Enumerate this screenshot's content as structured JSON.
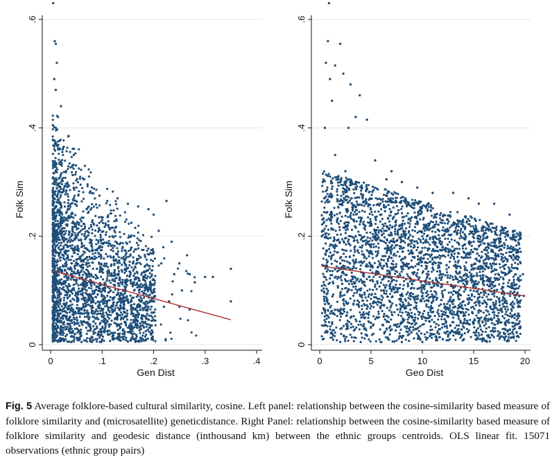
{
  "chart_data": [
    {
      "type": "scatter",
      "xlabel": "Gen Dist",
      "ylabel": "Folk Sim",
      "xlim": [
        0,
        0.4
      ],
      "ylim": [
        0,
        0.6
      ],
      "x_ticks": [
        0,
        0.1,
        0.2,
        0.3,
        0.4
      ],
      "x_tick_labels": [
        "0",
        ".1",
        ".2",
        ".3",
        ".4"
      ],
      "y_ticks": [
        0,
        0.2,
        0.4,
        0.6
      ],
      "y_tick_labels": [
        "0",
        ".2",
        ".4",
        ".6"
      ],
      "grid": "horizontal",
      "point_color": "#1f4e79",
      "fit_color": "#b03030",
      "fit_line": {
        "x": [
          0.005,
          0.35
        ],
        "y": [
          0.136,
          0.046
        ]
      },
      "points": [
        [
          0.005,
          0.63
        ],
        [
          0.008,
          0.56
        ],
        [
          0.01,
          0.555
        ],
        [
          0.012,
          0.52
        ],
        [
          0.007,
          0.49
        ],
        [
          0.01,
          0.47
        ],
        [
          0.02,
          0.44
        ],
        [
          0.035,
          0.385
        ],
        [
          0.045,
          0.35
        ],
        [
          0.055,
          0.325
        ],
        [
          0.065,
          0.305
        ],
        [
          0.08,
          0.29
        ],
        [
          0.095,
          0.275
        ],
        [
          0.11,
          0.265
        ],
        [
          0.13,
          0.27
        ],
        [
          0.15,
          0.26
        ],
        [
          0.17,
          0.255
        ],
        [
          0.19,
          0.25
        ],
        [
          0.2,
          0.24
        ],
        [
          0.225,
          0.265
        ],
        [
          0.21,
          0.21
        ],
        [
          0.235,
          0.19
        ],
        [
          0.2,
          0.17
        ],
        [
          0.215,
          0.15
        ],
        [
          0.25,
          0.15
        ],
        [
          0.265,
          0.165
        ],
        [
          0.27,
          0.13
        ],
        [
          0.28,
          0.115
        ],
        [
          0.3,
          0.125
        ],
        [
          0.315,
          0.125
        ],
        [
          0.35,
          0.14
        ],
        [
          0.35,
          0.08
        ],
        [
          0.27,
          0.065
        ],
        [
          0.255,
          0.1
        ],
        [
          0.24,
          0.13
        ],
        [
          0.22,
          0.07
        ],
        [
          0.2,
          0.045
        ],
        [
          0.185,
          0.025
        ],
        [
          0.16,
          0.03
        ],
        [
          0.14,
          0.02
        ],
        [
          0.12,
          0.015
        ],
        [
          0.1,
          0.01
        ],
        [
          0.08,
          0.005
        ],
        [
          0.06,
          0.005
        ],
        [
          0.04,
          0.005
        ],
        [
          0.02,
          0.01
        ],
        [
          0.005,
          0.02
        ],
        [
          0.005,
          0.1
        ],
        [
          0.005,
          0.2
        ],
        [
          0.01,
          0.3
        ],
        [
          0.015,
          0.36
        ],
        [
          0.03,
          0.32
        ],
        [
          0.05,
          0.29
        ],
        [
          0.07,
          0.25
        ],
        [
          0.09,
          0.22
        ],
        [
          0.12,
          0.2
        ],
        [
          0.14,
          0.18
        ],
        [
          0.16,
          0.15
        ],
        [
          0.18,
          0.12
        ],
        [
          0.2,
          0.1
        ],
        [
          0.23,
          0.08
        ],
        [
          0.25,
          0.07
        ],
        [
          0.03,
          0.15
        ],
        [
          0.05,
          0.12
        ],
        [
          0.07,
          0.1
        ],
        [
          0.09,
          0.14
        ],
        [
          0.11,
          0.09
        ],
        [
          0.13,
          0.13
        ],
        [
          0.15,
          0.08
        ],
        [
          0.17,
          0.11
        ],
        [
          0.19,
          0.07
        ],
        [
          0.03,
          0.05
        ],
        [
          0.06,
          0.04
        ],
        [
          0.09,
          0.05
        ],
        [
          0.12,
          0.06
        ],
        [
          0.02,
          0.23
        ],
        [
          0.04,
          0.2
        ],
        [
          0.06,
          0.18
        ],
        [
          0.08,
          0.16
        ],
        [
          0.1,
          0.18
        ],
        [
          0.01,
          0.4
        ]
      ],
      "fit_note": "Dense cloud of points concentrated between x 0.005-0.15, thinning toward 0.35"
    },
    {
      "type": "scatter",
      "xlabel": "Geo Dist",
      "ylabel": "Folk Sim",
      "xlim": [
        0,
        20
      ],
      "ylim": [
        0,
        0.6
      ],
      "x_ticks": [
        0,
        5,
        10,
        15,
        20
      ],
      "x_tick_labels": [
        "0",
        "5",
        "10",
        "15",
        "20"
      ],
      "y_ticks": [
        0,
        0.2,
        0.4,
        0.6
      ],
      "y_tick_labels": [
        "0",
        ".2",
        ".4",
        ".6"
      ],
      "grid": "horizontal",
      "point_color": "#1f4e79",
      "fit_color": "#b03030",
      "fit_line": {
        "x": [
          0.2,
          20
        ],
        "y": [
          0.145,
          0.09
        ]
      },
      "points": [
        [
          0.9,
          0.63
        ],
        [
          0.8,
          0.56
        ],
        [
          2.0,
          0.555
        ],
        [
          0.6,
          0.52
        ],
        [
          1.5,
          0.515
        ],
        [
          2.3,
          0.5
        ],
        [
          1.0,
          0.49
        ],
        [
          3.0,
          0.48
        ],
        [
          3.9,
          0.46
        ],
        [
          1.2,
          0.45
        ],
        [
          4.6,
          0.415
        ],
        [
          3.5,
          0.42
        ],
        [
          2.8,
          0.4
        ],
        [
          5.4,
          0.34
        ],
        [
          7.0,
          0.32
        ],
        [
          8.0,
          0.3
        ],
        [
          6.5,
          0.305
        ],
        [
          9.5,
          0.29
        ],
        [
          11.0,
          0.28
        ],
        [
          13.0,
          0.28
        ],
        [
          14.5,
          0.27
        ],
        [
          15.5,
          0.26
        ],
        [
          17.0,
          0.26
        ],
        [
          18.5,
          0.24
        ],
        [
          19.0,
          0.21
        ],
        [
          19.5,
          0.2
        ],
        [
          19.8,
          0.13
        ],
        [
          19.9,
          0.09
        ],
        [
          19.5,
          0.07
        ],
        [
          18.8,
          0.04
        ],
        [
          19.0,
          0.03
        ],
        [
          17.5,
          0.02
        ],
        [
          16.0,
          0.01
        ],
        [
          14.0,
          0.01
        ],
        [
          12.0,
          0.01
        ],
        [
          10.0,
          0.005
        ],
        [
          8.0,
          0.005
        ],
        [
          6.0,
          0.005
        ],
        [
          4.0,
          0.005
        ],
        [
          2.0,
          0.005
        ],
        [
          0.3,
          0.01
        ],
        [
          0.2,
          0.1
        ],
        [
          0.2,
          0.2
        ],
        [
          0.3,
          0.3
        ],
        [
          0.5,
          0.4
        ],
        [
          1.5,
          0.35
        ],
        [
          2.5,
          0.32
        ],
        [
          3.5,
          0.3
        ],
        [
          4.5,
          0.26
        ],
        [
          6.0,
          0.24
        ],
        [
          8.0,
          0.22
        ],
        [
          10.0,
          0.2
        ],
        [
          12.0,
          0.18
        ],
        [
          14.0,
          0.16
        ],
        [
          16.0,
          0.15
        ],
        [
          18.0,
          0.14
        ],
        [
          2.0,
          0.15
        ],
        [
          4.0,
          0.12
        ],
        [
          6.0,
          0.1
        ],
        [
          8.0,
          0.14
        ],
        [
          10.0,
          0.09
        ],
        [
          12.0,
          0.13
        ],
        [
          14.0,
          0.08
        ],
        [
          16.0,
          0.11
        ],
        [
          18.0,
          0.07
        ],
        [
          3.0,
          0.05
        ],
        [
          5.0,
          0.04
        ],
        [
          7.0,
          0.06
        ],
        [
          9.0,
          0.05
        ],
        [
          11.0,
          0.06
        ],
        [
          13.0,
          0.05
        ],
        [
          15.0,
          0.04
        ],
        [
          17.0,
          0.06
        ],
        [
          1.0,
          0.23
        ],
        [
          3.0,
          0.2
        ],
        [
          5.0,
          0.18
        ],
        [
          7.0,
          0.16
        ],
        [
          9.0,
          0.17
        ],
        [
          11.0,
          0.15
        ],
        [
          13.0,
          0.12
        ],
        [
          15.0,
          0.19
        ],
        [
          17.0,
          0.1
        ]
      ],
      "fit_note": "Dense band of points across x 0-19.5, mostly between y 0 and 0.3"
    }
  ],
  "caption": {
    "label": "Fig. 5",
    "text": "Average folklore-based cultural similarity, cosine. Left panel: relationship between the cosine-similarity based measure of folklore similarity and (microsatellite) geneticdistance. Right Panel: relationship between the cosine-similarity based measure of folklore similarity and geodesic distance (inthousand km) between the ethnic groups centroids. OLS linear fit. 15071 observations (ethnic group pairs)"
  }
}
